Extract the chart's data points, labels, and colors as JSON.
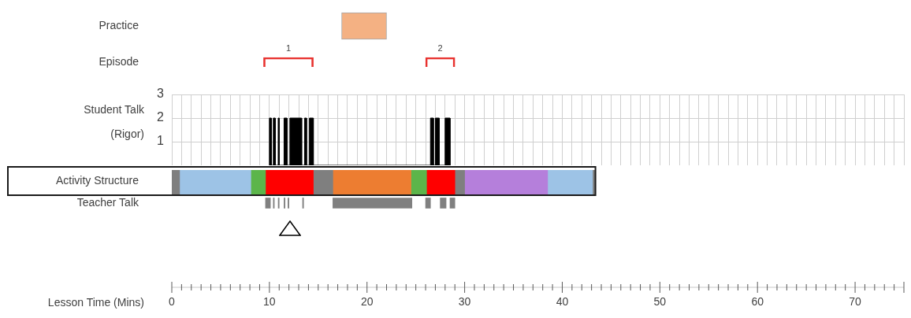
{
  "chart_data": [
    {
      "type": "bar",
      "orientation": "horizontal",
      "categories": [
        "Practice",
        "Episode"
      ],
      "xlim": [
        0,
        75
      ],
      "tick_labels": "y",
      "series": [
        {
          "color": "#f4b183",
          "values": [
            4.6,
            null
          ],
          "base": [
            17.4,
            null
          ]
        },
        {
          "name": "1",
          "color": "#e8322f",
          "values": [
            null,
            5.1
          ],
          "base": [
            null,
            9.4
          ]
        },
        {
          "name": "2",
          "color": "#e8322f",
          "values": [
            null,
            3.0
          ],
          "base": [
            null,
            26.0
          ]
        }
      ]
    },
    {
      "type": "area",
      "ylabel": "Student Talk (Rigor)",
      "xlim": [
        0,
        75
      ],
      "ylim": [
        0,
        3
      ],
      "yticks": [
        1,
        2,
        3
      ],
      "grid": true,
      "tick_labels": "y",
      "xticks": [
        0,
        {
          "value": 1,
          "label": null
        },
        {
          "value": 2,
          "label": null
        },
        {
          "value": 3,
          "label": null
        },
        {
          "value": 4,
          "label": null
        },
        {
          "value": 5,
          "label": null
        },
        {
          "value": 6,
          "label": null
        },
        {
          "value": 7,
          "label": null
        },
        {
          "value": 8,
          "label": null
        },
        {
          "value": 9,
          "label": null
        },
        10,
        {
          "value": 11,
          "label": null
        },
        {
          "value": 12,
          "label": null
        },
        {
          "value": 13,
          "label": null
        },
        {
          "value": 14,
          "label": null
        },
        {
          "value": 15,
          "label": null
        },
        {
          "value": 16,
          "label": null
        },
        {
          "value": 17,
          "label": null
        },
        {
          "value": 18,
          "label": null
        },
        {
          "value": 19,
          "label": null
        },
        20,
        {
          "value": 21,
          "label": null
        },
        {
          "value": 22,
          "label": null
        },
        {
          "value": 23,
          "label": null
        },
        {
          "value": 24,
          "label": null
        },
        {
          "value": 25,
          "label": null
        },
        {
          "value": 26,
          "label": null
        },
        {
          "value": 27,
          "label": null
        },
        {
          "value": 28,
          "label": null
        },
        {
          "value": 29,
          "label": null
        },
        30,
        {
          "value": 31,
          "label": null
        },
        {
          "value": 32,
          "label": null
        },
        {
          "value": 33,
          "label": null
        },
        {
          "value": 34,
          "label": null
        },
        {
          "value": 35,
          "label": null
        },
        {
          "value": 36,
          "label": null
        },
        {
          "value": 37,
          "label": null
        },
        {
          "value": 38,
          "label": null
        },
        {
          "value": 39,
          "label": null
        },
        40,
        {
          "value": 41,
          "label": null
        },
        {
          "value": 42,
          "label": null
        },
        {
          "value": 43,
          "label": null
        },
        {
          "value": 44,
          "label": null
        },
        {
          "value": 45,
          "label": null
        },
        {
          "value": 46,
          "label": null
        },
        {
          "value": 47,
          "label": null
        },
        {
          "value": 48,
          "label": null
        },
        {
          "value": 49,
          "label": null
        },
        50,
        {
          "value": 51,
          "label": null
        },
        {
          "value": 52,
          "label": null
        },
        {
          "value": 53,
          "label": null
        },
        {
          "value": 54,
          "label": null
        },
        {
          "value": 55,
          "label": null
        },
        {
          "value": 56,
          "label": null
        },
        {
          "value": 57,
          "label": null
        },
        {
          "value": 58,
          "label": null
        },
        {
          "value": 59,
          "label": null
        },
        60,
        {
          "value": 61,
          "label": null
        },
        {
          "value": 62,
          "label": null
        },
        {
          "value": 63,
          "label": null
        },
        {
          "value": 64,
          "label": null
        },
        {
          "value": 65,
          "label": null
        },
        {
          "value": 66,
          "label": null
        },
        {
          "value": 67,
          "label": null
        },
        {
          "value": 68,
          "label": null
        },
        {
          "value": 69,
          "label": null
        },
        70,
        {
          "value": 71,
          "label": null
        },
        {
          "value": 72,
          "label": null
        },
        {
          "value": 73,
          "label": null
        },
        {
          "value": 74,
          "label": null
        },
        {
          "value": 75,
          "label": null
        }
      ],
      "x": [
        10.0,
        10.0,
        10.2,
        10.2,
        10.4,
        10.4,
        10.6,
        10.6,
        10.9,
        10.9,
        11.0,
        11.0,
        11.5,
        11.5,
        11.8,
        11.8,
        12.1,
        12.1,
        13.3,
        13.3,
        13.6,
        13.6,
        13.8,
        13.8,
        14.1,
        14.1,
        14.5,
        14.5,
        26.5,
        26.5,
        26.8,
        26.8,
        27.0,
        27.0,
        27.4,
        27.4,
        28.0,
        28.0,
        28.5,
        28.5
      ],
      "series": [
        {
          "color": "#000000",
          "values": [
            0,
            2,
            2,
            0,
            0,
            2,
            2,
            0,
            0,
            2,
            2,
            0,
            0,
            2,
            2,
            0,
            0,
            2,
            2,
            0,
            0,
            2,
            2,
            0,
            0,
            2,
            2,
            0,
            0,
            2,
            2,
            0,
            0,
            2,
            2,
            0,
            0,
            2,
            2,
            0
          ]
        }
      ]
    },
    {
      "type": "bar",
      "orientation": "horizontal",
      "categories": [
        "Activity Structure",
        "Teacher Talk",
        null,
        null,
        null
      ],
      "xlabel": "Lesson Time (Mins)",
      "xlim": [
        0,
        75
      ],
      "xticks": [
        0,
        {
          "value": 1,
          "label": null
        },
        {
          "value": 2,
          "label": null
        },
        {
          "value": 3,
          "label": null
        },
        {
          "value": 4,
          "label": null
        },
        {
          "value": 5,
          "label": null
        },
        {
          "value": 6,
          "label": null
        },
        {
          "value": 7,
          "label": null
        },
        {
          "value": 8,
          "label": null
        },
        {
          "value": 9,
          "label": null
        },
        10,
        {
          "value": 11,
          "label": null
        },
        {
          "value": 12,
          "label": null
        },
        {
          "value": 13,
          "label": null
        },
        {
          "value": 14,
          "label": null
        },
        {
          "value": 15,
          "label": null
        },
        {
          "value": 16,
          "label": null
        },
        {
          "value": 17,
          "label": null
        },
        {
          "value": 18,
          "label": null
        },
        {
          "value": 19,
          "label": null
        },
        20,
        {
          "value": 21,
          "label": null
        },
        {
          "value": 22,
          "label": null
        },
        {
          "value": 23,
          "label": null
        },
        {
          "value": 24,
          "label": null
        },
        {
          "value": 25,
          "label": null
        },
        {
          "value": 26,
          "label": null
        },
        {
          "value": 27,
          "label": null
        },
        {
          "value": 28,
          "label": null
        },
        {
          "value": 29,
          "label": null
        },
        30,
        {
          "value": 31,
          "label": null
        },
        {
          "value": 32,
          "label": null
        },
        {
          "value": 33,
          "label": null
        },
        {
          "value": 34,
          "label": null
        },
        {
          "value": 35,
          "label": null
        },
        {
          "value": 36,
          "label": null
        },
        {
          "value": 37,
          "label": null
        },
        {
          "value": 38,
          "label": null
        },
        {
          "value": 39,
          "label": null
        },
        40,
        {
          "value": 41,
          "label": null
        },
        {
          "value": 42,
          "label": null
        },
        {
          "value": 43,
          "label": null
        },
        {
          "value": 44,
          "label": null
        },
        {
          "value": 45,
          "label": null
        },
        {
          "value": 46,
          "label": null
        },
        {
          "value": 47,
          "label": null
        },
        {
          "value": 48,
          "label": null
        },
        {
          "value": 49,
          "label": null
        },
        50,
        {
          "value": 51,
          "label": null
        },
        {
          "value": 52,
          "label": null
        },
        {
          "value": 53,
          "label": null
        },
        {
          "value": 54,
          "label": null
        },
        {
          "value": 55,
          "label": null
        },
        {
          "value": 56,
          "label": null
        },
        {
          "value": 57,
          "label": null
        },
        {
          "value": 58,
          "label": null
        },
        {
          "value": 59,
          "label": null
        },
        60,
        {
          "value": 61,
          "label": null
        },
        {
          "value": 62,
          "label": null
        },
        {
          "value": 63,
          "label": null
        },
        {
          "value": 64,
          "label": null
        },
        {
          "value": 65,
          "label": null
        },
        {
          "value": 66,
          "label": null
        },
        {
          "value": 67,
          "label": null
        },
        {
          "value": 68,
          "label": null
        },
        {
          "value": 69,
          "label": null
        },
        70,
        {
          "value": 71,
          "label": null
        },
        {
          "value": 72,
          "label": null
        },
        {
          "value": 73,
          "label": null
        },
        {
          "value": 74,
          "label": null
        },
        {
          "value": 75,
          "label": null
        }
      ],
      "series": [
        {
          "color": "#7f7f7f",
          "values": [
            0.8,
            null,
            null,
            null,
            null
          ],
          "base": [
            0,
            null,
            null,
            null,
            null
          ]
        },
        {
          "color": "#9dc3e6",
          "values": [
            7.3,
            null,
            null,
            null,
            null
          ],
          "base": [
            0.8,
            null,
            null,
            null,
            null
          ]
        },
        {
          "color": "#5cb54a",
          "values": [
            1.5,
            null,
            null,
            null,
            null
          ],
          "base": [
            8.1,
            null,
            null,
            null,
            null
          ]
        },
        {
          "color": "#ff0000",
          "values": [
            4.9,
            null,
            null,
            null,
            null
          ],
          "base": [
            9.6,
            null,
            null,
            null,
            null
          ]
        },
        {
          "color": "#7f7f7f",
          "values": [
            2.0,
            null,
            null,
            null,
            null
          ],
          "base": [
            14.5,
            null,
            null,
            null,
            null
          ]
        },
        {
          "color": "#ed7d31",
          "values": [
            8.0,
            null,
            null,
            null,
            null
          ],
          "base": [
            16.5,
            null,
            null,
            null,
            null
          ]
        },
        {
          "color": "#5cb54a",
          "values": [
            1.6,
            null,
            null,
            null,
            null
          ],
          "base": [
            24.5,
            null,
            null,
            null,
            null
          ]
        },
        {
          "color": "#ff0000",
          "values": [
            2.9,
            null,
            null,
            null,
            null
          ],
          "base": [
            26.1,
            null,
            null,
            null,
            null
          ]
        },
        {
          "color": "#7f7f7f",
          "values": [
            1.0,
            null,
            null,
            null,
            null
          ],
          "base": [
            29.0,
            null,
            null,
            null,
            null
          ]
        },
        {
          "color": "#b57fdb",
          "values": [
            8.5,
            null,
            null,
            null,
            null
          ],
          "base": [
            30.0,
            null,
            null,
            null,
            null
          ]
        },
        {
          "color": "#9dc3e6",
          "values": [
            4.6,
            null,
            null,
            null,
            null
          ],
          "base": [
            38.5,
            null,
            null,
            null,
            null
          ]
        },
        {
          "color": "#7f7f7f",
          "values": [
            0.3,
            null,
            null,
            null,
            null
          ],
          "base": [
            43.1,
            null,
            null,
            null,
            null
          ]
        },
        {
          "color": "#808080",
          "values": [
            null,
            0.5,
            null,
            null,
            null
          ],
          "base": [
            null,
            9.6,
            null,
            null,
            null
          ]
        },
        {
          "color": "#808080",
          "values": [
            null,
            0.1,
            null,
            null,
            null
          ],
          "base": [
            null,
            10.4,
            null,
            null,
            null
          ]
        },
        {
          "color": "#808080",
          "values": [
            null,
            0.1,
            null,
            null,
            null
          ],
          "base": [
            null,
            10.9,
            null,
            null,
            null
          ]
        },
        {
          "color": "#808080",
          "values": [
            null,
            0.1,
            null,
            null,
            null
          ],
          "base": [
            null,
            11.5,
            null,
            null,
            null
          ]
        },
        {
          "color": "#808080",
          "values": [
            null,
            0.1,
            null,
            null,
            null
          ],
          "base": [
            null,
            11.9,
            null,
            null,
            null
          ]
        },
        {
          "color": "#808080",
          "values": [
            null,
            0.1,
            null,
            null,
            null
          ],
          "base": [
            null,
            13.4,
            null,
            null,
            null
          ]
        },
        {
          "color": "#808080",
          "values": [
            null,
            8.1,
            null,
            null,
            null
          ],
          "base": [
            null,
            16.5,
            null,
            null,
            null
          ]
        },
        {
          "color": "#808080",
          "values": [
            null,
            0.5,
            null,
            null,
            null
          ],
          "base": [
            null,
            26.0,
            null,
            null,
            null
          ]
        },
        {
          "color": "#808080",
          "values": [
            null,
            0.6,
            null,
            null,
            null
          ],
          "base": [
            null,
            27.5,
            null,
            null,
            null
          ]
        },
        {
          "color": "#808080",
          "values": [
            null,
            0.5,
            null,
            null,
            null
          ],
          "base": [
            null,
            28.5,
            null,
            null,
            null
          ]
        }
      ]
    }
  ]
}
